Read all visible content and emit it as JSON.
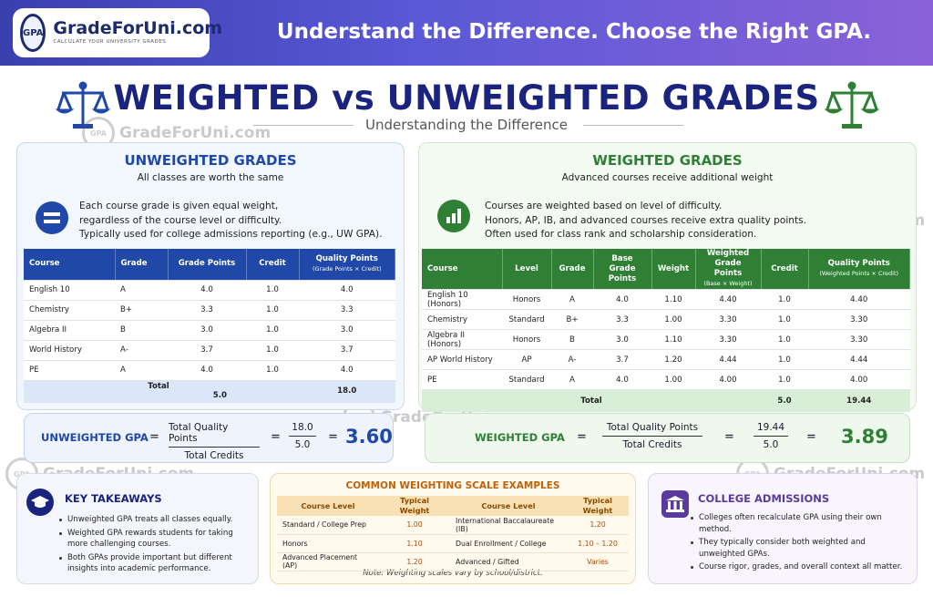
{
  "header": {
    "logo_badge": "GPA",
    "logo_name": "GradeForUni.com",
    "logo_tagline": "CALCULATE YOUR UNIVERSITY GRADES",
    "tagline": "Understand the Difference. Choose the Right GPA."
  },
  "title": "WEIGHTED vs UNWEIGHTED GRADES",
  "subtitle": "Understanding the Difference",
  "watermark": {
    "badge": "GPA",
    "name": "GradeForUni.com"
  },
  "colors": {
    "blue": "#1f48a8",
    "green": "#2f7f35",
    "navy": "#1a237e",
    "orange": "#b24c00",
    "purple": "#5b3a9e"
  },
  "unweighted": {
    "title": "UNWEIGHTED GRADES",
    "subtitle": "All classes are worth the same",
    "icon": "equals-icon",
    "desc": [
      "Each course grade is given equal weight,",
      "regardless of the course level or difficulty.",
      "Typically used for college admissions reporting (e.g., UW GPA)."
    ],
    "headers": [
      "Course",
      "Grade",
      "Grade Points",
      "Credit",
      "Quality Points"
    ],
    "qp_note": "(Grade Points × Credit)",
    "rows": [
      [
        "English 10",
        "A",
        "4.0",
        "1.0",
        "4.0"
      ],
      [
        "Chemistry",
        "B+",
        "3.3",
        "1.0",
        "3.3"
      ],
      [
        "Algebra II",
        "B",
        "3.0",
        "1.0",
        "3.0"
      ],
      [
        "World History",
        "A-",
        "3.7",
        "1.0",
        "3.7"
      ],
      [
        "PE",
        "A",
        "4.0",
        "1.0",
        "4.0"
      ]
    ],
    "total": {
      "label": "Total",
      "credit": "5.0",
      "qp": "18.0"
    },
    "gpa": {
      "label": "UNWEIGHTED GPA",
      "eq": "=",
      "num_label": "Total Quality Points",
      "den_label": "Total Credits",
      "num": "18.0",
      "den": "5.0",
      "result": "3.60"
    }
  },
  "weighted": {
    "title": "WEIGHTED GRADES",
    "subtitle": "Advanced courses receive additional weight",
    "icon": "bar-chart-icon",
    "desc": [
      "Courses are weighted based on level of difficulty.",
      "Honors, AP, IB, and advanced courses receive extra quality points.",
      "Often used for class rank and scholarship consideration."
    ],
    "headers": [
      "Course",
      "Level",
      "Grade",
      "Base Grade Points",
      "Weight",
      "Weighted Grade Points",
      "Credit",
      "Quality Points"
    ],
    "wgp_note": "(Base × Weight)",
    "qp_note": "(Weighted Points × Credit)",
    "rows": [
      [
        "English 10 (Honors)",
        "Honors",
        "A",
        "4.0",
        "1.10",
        "4.40",
        "1.0",
        "4.40"
      ],
      [
        "Chemistry",
        "Standard",
        "B+",
        "3.3",
        "1.00",
        "3.30",
        "1.0",
        "3.30"
      ],
      [
        "Algebra II (Honors)",
        "Honors",
        "B",
        "3.0",
        "1.10",
        "3.30",
        "1.0",
        "3.30"
      ],
      [
        "AP World History",
        "AP",
        "A-",
        "3.7",
        "1.20",
        "4.44",
        "1.0",
        "4.44"
      ],
      [
        "PE",
        "Standard",
        "A",
        "4.0",
        "1.00",
        "4.00",
        "1.0",
        "4.00"
      ]
    ],
    "total": {
      "label": "Total",
      "credit": "5.0",
      "qp": "19.44"
    },
    "gpa": {
      "label": "WEIGHTED GPA",
      "eq": "=",
      "num_label": "Total Quality Points",
      "den_label": "Total Credits",
      "num": "19.44",
      "den": "5.0",
      "result": "3.89"
    }
  },
  "takeaways": {
    "title": "KEY TAKEAWAYS",
    "icon": "graduation-cap-icon",
    "items": [
      "Unweighted GPA treats all classes equally.",
      "Weighted GPA rewards students for taking more challenging courses.",
      "Both GPAs provide important but different insights into academic performance."
    ]
  },
  "scale": {
    "title": "COMMON WEIGHTING SCALE EXAMPLES",
    "headers": [
      "Course Level",
      "Typical Weight",
      "Course Level",
      "Typical Weight"
    ],
    "rows": [
      [
        "Standard / College Prep",
        "1.00",
        "International Baccalaureate (IB)",
        "1.20"
      ],
      [
        "Honors",
        "1.10",
        "Dual Enrollment / College",
        "1.10 – 1.20"
      ],
      [
        "Advanced Placement (AP)",
        "1.20",
        "Advanced / Gifted",
        "Varies"
      ]
    ],
    "note": "Note: Weighting scales vary by school/district."
  },
  "admissions": {
    "title": "COLLEGE ADMISSIONS",
    "icon": "building-icon",
    "items": [
      "Colleges often recalculate GPA using their own method.",
      "They typically consider both weighted and unweighted GPAs.",
      "Course rigor, grades, and overall context all matter."
    ]
  }
}
